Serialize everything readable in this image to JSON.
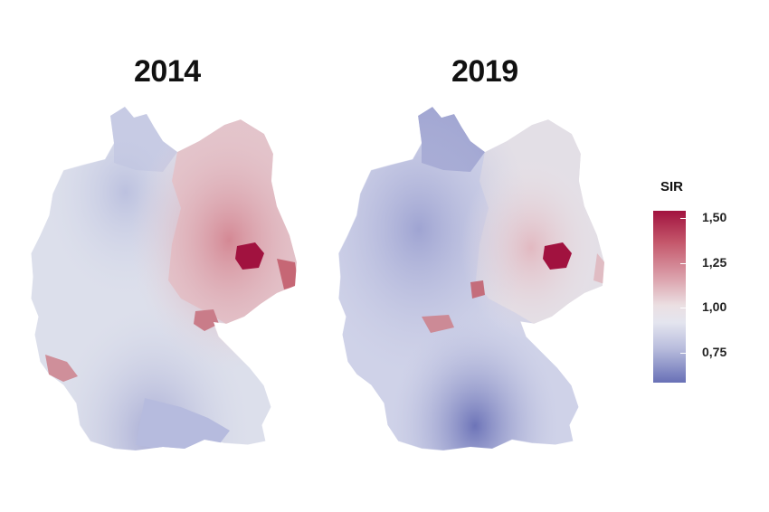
{
  "titles": {
    "left": "2014",
    "right": "2019"
  },
  "legend": {
    "title": "SIR",
    "labels": [
      "1,50",
      "1,25",
      "1,00",
      "0,75"
    ],
    "colors": {
      "high": "#a1123f",
      "mid": "#ebe6ea",
      "low": "#6870b6"
    }
  }
}
